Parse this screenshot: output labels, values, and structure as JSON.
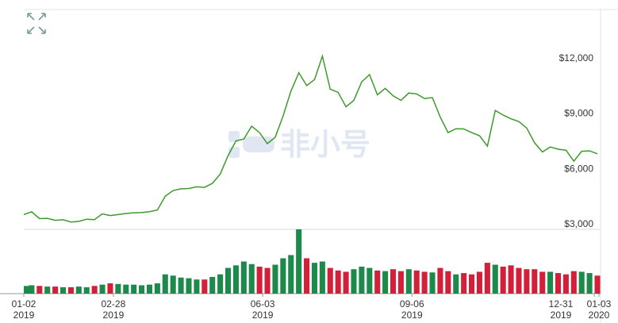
{
  "chart_data": {
    "type": "line",
    "watermark": "非小号",
    "color": "#3d9a2b",
    "x": [
      "2019-01-02",
      "2019-01-07",
      "2019-01-12",
      "2019-01-17",
      "2019-01-22",
      "2019-01-27",
      "2019-02-01",
      "2019-02-06",
      "2019-02-11",
      "2019-02-16",
      "2019-02-21",
      "2019-02-26",
      "2019-03-03",
      "2019-03-08",
      "2019-03-13",
      "2019-03-18",
      "2019-03-23",
      "2019-03-28",
      "2019-04-02",
      "2019-04-07",
      "2019-04-12",
      "2019-04-17",
      "2019-04-22",
      "2019-04-27",
      "2019-05-02",
      "2019-05-07",
      "2019-05-12",
      "2019-05-17",
      "2019-05-22",
      "2019-05-27",
      "2019-06-01",
      "2019-06-06",
      "2019-06-11",
      "2019-06-16",
      "2019-06-21",
      "2019-06-26",
      "2019-07-01",
      "2019-07-06",
      "2019-07-11",
      "2019-07-16",
      "2019-07-21",
      "2019-07-26",
      "2019-07-31",
      "2019-08-05",
      "2019-08-10",
      "2019-08-15",
      "2019-08-20",
      "2019-08-25",
      "2019-08-30",
      "2019-09-04",
      "2019-09-09",
      "2019-09-14",
      "2019-09-19",
      "2019-09-24",
      "2019-09-29",
      "2019-10-04",
      "2019-10-09",
      "2019-10-14",
      "2019-10-19",
      "2019-10-24",
      "2019-10-29",
      "2019-11-03",
      "2019-11-08",
      "2019-11-13",
      "2019-11-18",
      "2019-11-23",
      "2019-11-28",
      "2019-12-03",
      "2019-12-08",
      "2019-12-13",
      "2019-12-18",
      "2019-12-23",
      "2019-12-28",
      "2020-01-02"
    ],
    "values": [
      3500,
      3650,
      3280,
      3300,
      3190,
      3220,
      3100,
      3130,
      3250,
      3230,
      3540,
      3450,
      3500,
      3560,
      3600,
      3610,
      3660,
      3750,
      4500,
      4800,
      4900,
      4920,
      5010,
      4980,
      5200,
      5700,
      6700,
      7500,
      7600,
      8300,
      7950,
      7350,
      7700,
      8850,
      10200,
      11200,
      10500,
      10830,
      12100,
      10300,
      10140,
      9350,
      9700,
      10700,
      11100,
      10000,
      10350,
      9950,
      9700,
      10100,
      10050,
      9800,
      9850,
      8800,
      7950,
      8160,
      8150,
      7950,
      7780,
      7220,
      9150,
      8900,
      8700,
      8550,
      8200,
      7400,
      6900,
      7170,
      7050,
      7000,
      6400,
      6940,
      6960,
      6800
    ],
    "xlim": [
      "2019-01-02",
      "2020-01-03"
    ],
    "xticks": [
      {
        "value": "2019-01-02",
        "label": "01-02 2019"
      },
      {
        "value": "2019-02-28",
        "label": "02-28 2019"
      },
      {
        "value": "2019-06-03",
        "label": "06-03 2019"
      },
      {
        "value": "2019-09-06",
        "label": "09-06 2019"
      },
      {
        "value": "2019-12-31",
        "label": "12-31 2019"
      },
      {
        "value": "2020-01-03",
        "label": "01-03 2020"
      }
    ],
    "ylim": [
      2700,
      14630
    ],
    "yticks": [
      {
        "value": 3000,
        "label": "$3,000"
      },
      {
        "value": 6000,
        "label": "$6,000"
      },
      {
        "value": 9000,
        "label": "$9,000"
      },
      {
        "value": 12000,
        "label": "$12,000"
      }
    ],
    "grid": false,
    "volume": {
      "type": "bar",
      "values": [
        12,
        13,
        12,
        11,
        11,
        10,
        10,
        11,
        10,
        12,
        14,
        16,
        15,
        14,
        14,
        13,
        14,
        16,
        30,
        28,
        25,
        24,
        22,
        22,
        26,
        30,
        40,
        44,
        50,
        46,
        42,
        40,
        45,
        55,
        60,
        100,
        55,
        48,
        50,
        40,
        36,
        34,
        38,
        42,
        40,
        36,
        35,
        38,
        35,
        38,
        36,
        34,
        33,
        40,
        35,
        30,
        32,
        30,
        34,
        48,
        45,
        42,
        44,
        40,
        38,
        38,
        34,
        34,
        32,
        30,
        35,
        34,
        32,
        28
      ],
      "ylim": [
        0,
        100
      ],
      "up_color": "#1d8a4c",
      "down_color": "#d2203a"
    }
  }
}
